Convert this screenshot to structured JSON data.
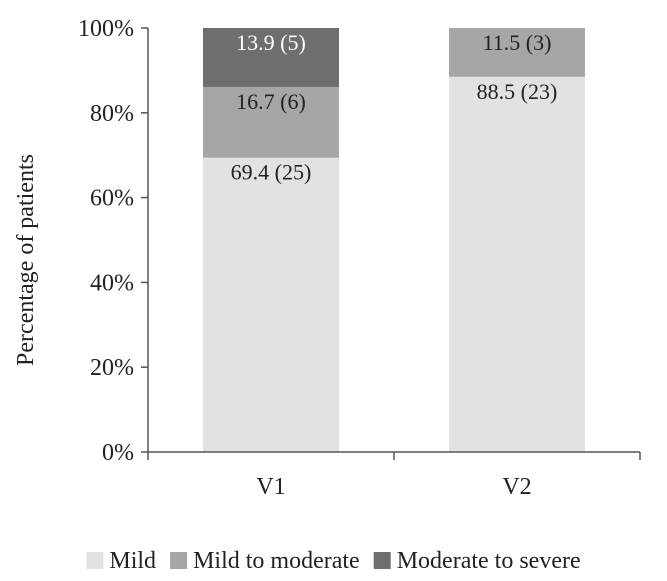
{
  "chart_data": {
    "type": "bar",
    "stacked": true,
    "title": "",
    "xlabel": "",
    "ylabel": "Percentage of patients",
    "ylim": [
      0,
      100
    ],
    "yticks": [
      "0%",
      "20%",
      "40%",
      "60%",
      "80%",
      "100%"
    ],
    "categories": [
      "V1",
      "V2"
    ],
    "series": [
      {
        "name": "Mild",
        "color": "#e2e2e4",
        "label_color": "#222222",
        "values": [
          69.4,
          88.5
        ],
        "labels": [
          "69.4 (25)",
          "88.5 (23)"
        ]
      },
      {
        "name": "Mild to moderate",
        "color": "#a6a6a8",
        "label_color": "#222222",
        "values": [
          16.7,
          11.5
        ],
        "labels": [
          "16.7 (6)",
          "11.5 (3)"
        ]
      },
      {
        "name": "Moderate to severe",
        "color": "#6e6e70",
        "label_color": "#ffffff",
        "values": [
          13.9,
          0
        ],
        "labels": [
          "13.9 (5)",
          ""
        ]
      }
    ],
    "grid": false,
    "legend_position": "bottom"
  }
}
